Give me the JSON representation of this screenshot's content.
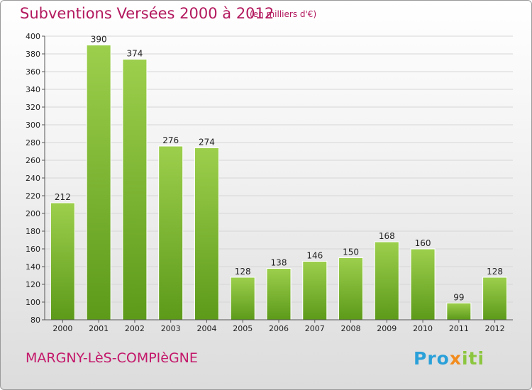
{
  "header": {
    "title": "Subventions Versées 2000 à 2012",
    "subtitle": "(en milliers d'€)"
  },
  "footer": {
    "place": "MARGNY-LèS-COMPIèGNE",
    "logo": "Proxiti"
  },
  "colors": {
    "title": "#b3195e",
    "bar_light": "#9ccf4c",
    "bar_dark": "#5d9a1a"
  },
  "chart_data": {
    "type": "bar",
    "title": "Subventions Versées 2000 à 2012",
    "subtitle": "(en milliers d'€)",
    "xlabel": "",
    "ylabel": "",
    "categories": [
      "2000",
      "2001",
      "2002",
      "2003",
      "2004",
      "2005",
      "2006",
      "2007",
      "2008",
      "2009",
      "2010",
      "2011",
      "2012"
    ],
    "values": [
      212,
      390,
      374,
      276,
      274,
      128,
      138,
      146,
      150,
      168,
      160,
      99,
      128
    ],
    "ylim": [
      80,
      400
    ],
    "yticks": [
      80,
      100,
      120,
      140,
      160,
      180,
      200,
      220,
      240,
      260,
      280,
      300,
      320,
      340,
      360,
      380,
      400
    ],
    "grid": true,
    "legend": "none"
  }
}
